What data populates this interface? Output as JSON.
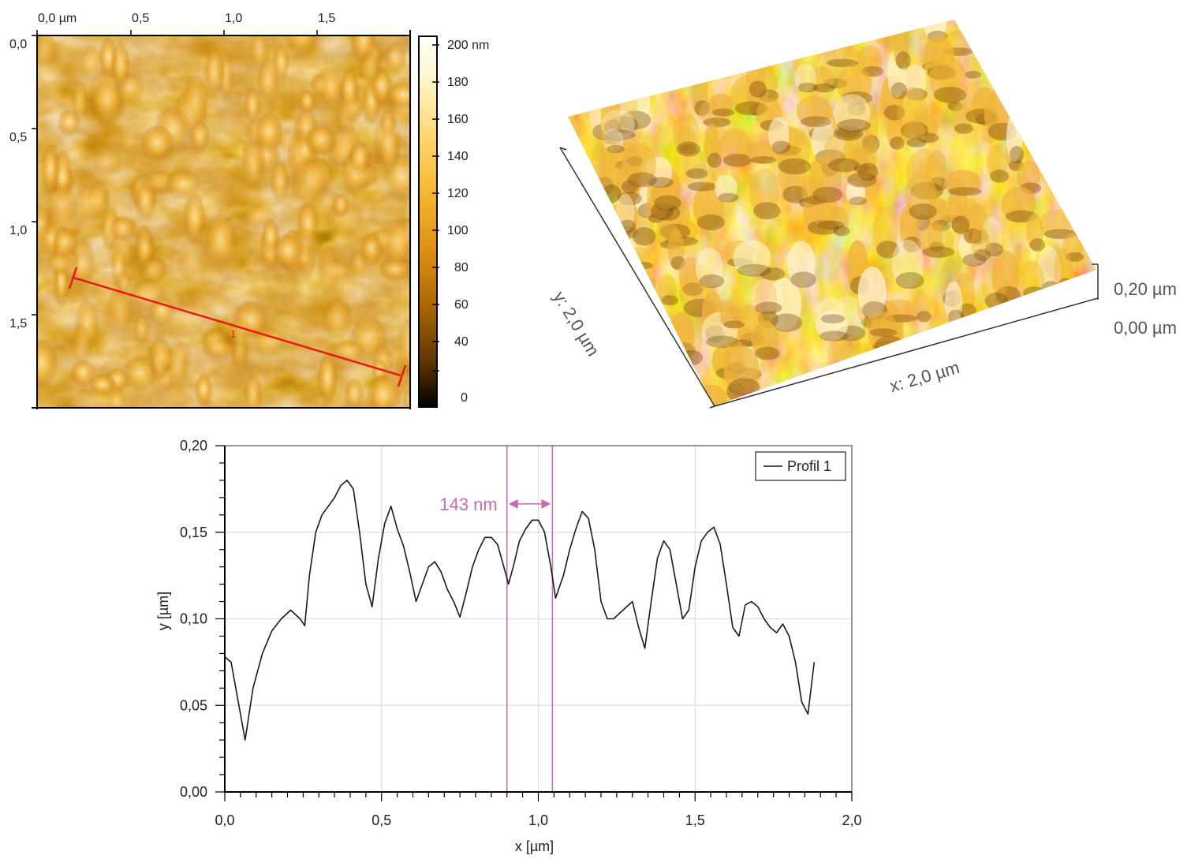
{
  "afm_map": {
    "x_ticks": [
      "0,0 µm",
      "0,5",
      "1,0",
      "1,5"
    ],
    "y_ticks": [
      "0,0",
      "0,5",
      "1,0",
      "1,5"
    ],
    "profile_label": "1",
    "colors": {
      "profile_line": "#e51b1b"
    }
  },
  "colorbar": {
    "ticks": [
      "200 nm",
      "180",
      "160",
      "140",
      "120",
      "100",
      "80",
      "60",
      "40",
      "0"
    ],
    "range_nm": [
      0,
      200
    ]
  },
  "surface_3d": {
    "y_axis_label": "y: 2,0 µm",
    "x_axis_label": "x: 2,0 µm",
    "z_top_label": "0,20 µm",
    "z_bottom_label": "0,00 µm"
  },
  "chart_data": {
    "type": "line",
    "xlabel": "x [µm]",
    "ylabel": "y [µm]",
    "xlim": [
      0,
      2.0
    ],
    "ylim": [
      0,
      0.2
    ],
    "x_ticks": [
      "0,0",
      "0,5",
      "1,0",
      "1,5",
      "2,0"
    ],
    "y_ticks": [
      "0,00",
      "0,05",
      "0,10",
      "0,15",
      "0,20"
    ],
    "grid": true,
    "legend_position": "top-right",
    "series": [
      {
        "name": "Profil 1",
        "color": "#1a1a1a",
        "x": [
          0.0,
          0.02,
          0.04,
          0.065,
          0.09,
          0.12,
          0.15,
          0.18,
          0.21,
          0.24,
          0.255,
          0.27,
          0.29,
          0.31,
          0.33,
          0.35,
          0.37,
          0.39,
          0.41,
          0.43,
          0.45,
          0.47,
          0.49,
          0.51,
          0.53,
          0.55,
          0.57,
          0.59,
          0.61,
          0.63,
          0.65,
          0.67,
          0.69,
          0.71,
          0.73,
          0.75,
          0.77,
          0.79,
          0.81,
          0.83,
          0.85,
          0.87,
          0.89,
          0.905,
          0.92,
          0.94,
          0.96,
          0.98,
          1.0,
          1.02,
          1.04,
          1.055,
          1.08,
          1.1,
          1.12,
          1.14,
          1.16,
          1.18,
          1.2,
          1.22,
          1.24,
          1.27,
          1.3,
          1.32,
          1.34,
          1.36,
          1.38,
          1.4,
          1.42,
          1.44,
          1.46,
          1.48,
          1.5,
          1.52,
          1.54,
          1.56,
          1.58,
          1.6,
          1.62,
          1.64,
          1.66,
          1.68,
          1.7,
          1.72,
          1.74,
          1.76,
          1.78,
          1.8,
          1.82,
          1.84,
          1.86,
          1.88
        ],
        "values": [
          0.078,
          0.075,
          0.055,
          0.03,
          0.06,
          0.08,
          0.093,
          0.1,
          0.105,
          0.1,
          0.096,
          0.125,
          0.15,
          0.16,
          0.165,
          0.17,
          0.177,
          0.18,
          0.175,
          0.15,
          0.12,
          0.107,
          0.135,
          0.155,
          0.165,
          0.152,
          0.142,
          0.127,
          0.11,
          0.12,
          0.13,
          0.133,
          0.127,
          0.117,
          0.11,
          0.101,
          0.115,
          0.13,
          0.14,
          0.147,
          0.147,
          0.143,
          0.13,
          0.12,
          0.13,
          0.145,
          0.152,
          0.157,
          0.157,
          0.15,
          0.13,
          0.112,
          0.125,
          0.14,
          0.152,
          0.162,
          0.158,
          0.14,
          0.11,
          0.1,
          0.1,
          0.105,
          0.11,
          0.095,
          0.083,
          0.11,
          0.135,
          0.145,
          0.14,
          0.12,
          0.1,
          0.105,
          0.13,
          0.145,
          0.15,
          0.153,
          0.143,
          0.12,
          0.095,
          0.09,
          0.108,
          0.11,
          0.107,
          0.1,
          0.095,
          0.092,
          0.097,
          0.09,
          0.075,
          0.052,
          0.045,
          0.075
        ]
      }
    ],
    "annotations": [
      {
        "text": "143 nm",
        "x_start": 0.9,
        "x_end": 1.045,
        "y": 0.17,
        "color": "#c76bb5"
      }
    ]
  }
}
